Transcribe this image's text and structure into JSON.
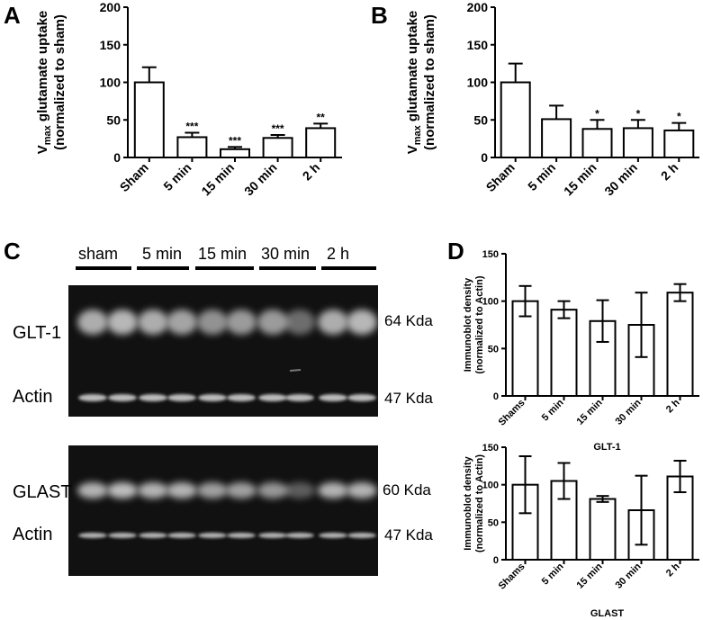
{
  "panels": {
    "A": "A",
    "B": "B",
    "C": "C",
    "D": "D"
  },
  "chart_data": [
    {
      "id": "A",
      "type": "bar",
      "categories": [
        "Sham",
        "5 min",
        "15 min",
        "30 min",
        "2 h"
      ],
      "values": [
        100,
        27,
        11,
        26,
        39
      ],
      "errors": [
        20,
        6,
        3,
        4,
        6
      ],
      "annotations": [
        "",
        "***",
        "***",
        "***",
        "**"
      ],
      "ylabel_main": "V",
      "ylabel_sub": "max",
      "ylabel_rest": " glutamate uptake",
      "ylabel_line2": "(normalized to sham)",
      "ylim": [
        0,
        200
      ],
      "yticks": [
        "0",
        "50",
        "100",
        "150",
        "200"
      ]
    },
    {
      "id": "B",
      "type": "bar",
      "categories": [
        "Sham",
        "5 min",
        "15 min",
        "30 min",
        "2 h"
      ],
      "values": [
        100,
        51,
        38,
        39,
        36
      ],
      "errors": [
        25,
        18,
        12,
        11,
        10
      ],
      "annotations": [
        "",
        "",
        "*",
        "*",
        "*"
      ],
      "ylabel_main": "V",
      "ylabel_sub": "max",
      "ylabel_rest": " glutamate uptake",
      "ylabel_line2": "(normalized to sham)",
      "ylim": [
        0,
        200
      ],
      "yticks": [
        "0",
        "50",
        "100",
        "150",
        "200"
      ]
    },
    {
      "id": "D1",
      "type": "bar",
      "categories": [
        "Shams",
        "5 min",
        "15 min",
        "30 min",
        "2 h"
      ],
      "values": [
        100,
        91,
        79,
        75,
        109
      ],
      "errors": [
        16,
        9,
        22,
        34,
        9
      ],
      "annotations": [
        "",
        "",
        "",
        "",
        ""
      ],
      "ylabel": "Immunoblot density",
      "ylabel_line2": "(normalized to Actin)",
      "xlabel": "GLT-1",
      "ylim": [
        0,
        150
      ],
      "yticks": [
        "0",
        "50",
        "100",
        "150"
      ]
    },
    {
      "id": "D2",
      "type": "bar",
      "categories": [
        "Shams",
        "5 min",
        "15 min",
        "30 min",
        "2 h"
      ],
      "values": [
        100,
        105,
        81,
        66,
        111
      ],
      "errors": [
        38,
        24,
        4,
        46,
        21
      ],
      "annotations": [
        "",
        "",
        "",
        "",
        ""
      ],
      "ylabel": "Immunoblot density",
      "ylabel_line2": "(normalized to Actin)",
      "xlabel": "GLAST",
      "ylim": [
        0,
        150
      ],
      "yticks": [
        "0",
        "50",
        "100",
        "150"
      ]
    }
  ],
  "blot": {
    "lane_labels": [
      "sham",
      "5 min",
      "15 min",
      "30 min",
      "2 h"
    ],
    "top_blot": {
      "protein": "GLT-1",
      "control": "Actin",
      "protein_kda": "64 Kda",
      "control_kda": "47 Kda"
    },
    "bottom_blot": {
      "protein": "GLAST",
      "control": "Actin",
      "protein_kda": "60 Kda",
      "control_kda": "47 Kda"
    }
  }
}
